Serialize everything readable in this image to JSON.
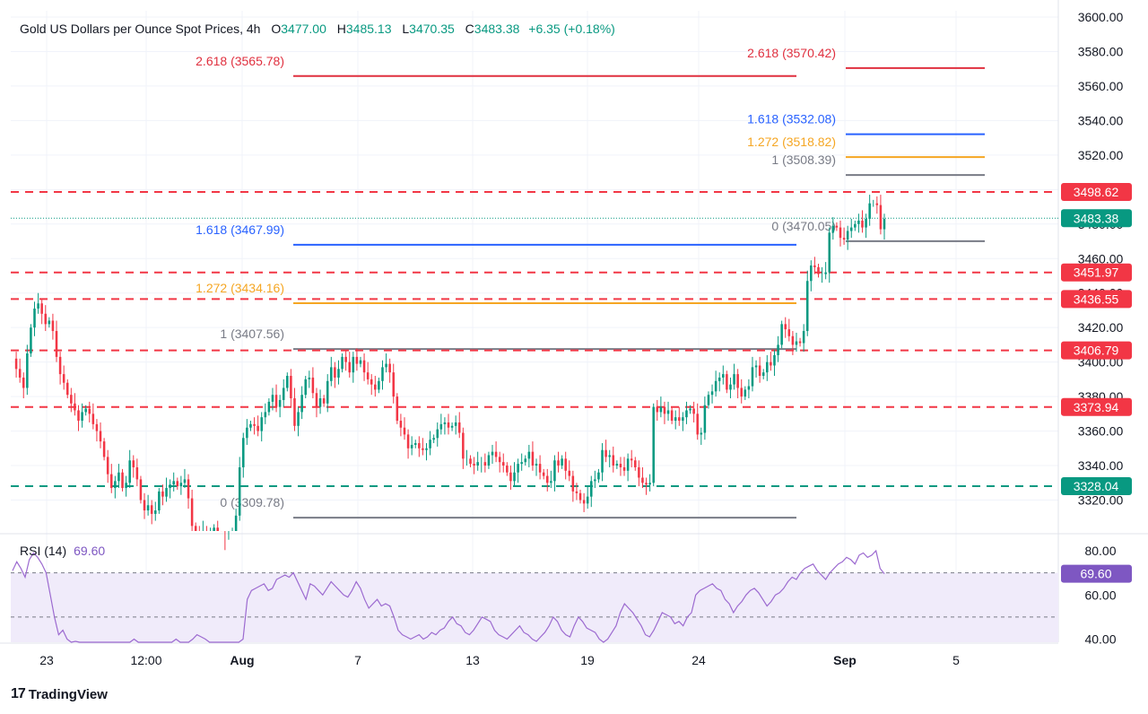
{
  "header": {
    "title": "Gold US Dollars per Ounce Spot Prices, 4h",
    "o_label": "O",
    "o_value": "3477.00",
    "h_label": "H",
    "h_value": "3485.13",
    "l_label": "L",
    "l_value": "3470.35",
    "c_label": "C",
    "c_value": "3483.38",
    "change": "+6.35 (+0.18%)"
  },
  "rsi_header": {
    "label": "RSI (14)",
    "value": "69.60"
  },
  "brand": {
    "logo": "17",
    "name": "TradingView"
  },
  "colors": {
    "up": "#089981",
    "down": "#f23645",
    "red_line": "#e0303f",
    "blue_line": "#2962ff",
    "orange_line": "#f5a623",
    "grey_line": "#787b86",
    "rsi": "#9c6ad0",
    "rsi_band": "#f0ebfa"
  },
  "chart_data": [
    {
      "type": "candlestick",
      "title": "Gold US Dollars per Ounce Spot Prices, 4h",
      "ylim": [
        3300,
        3600
      ],
      "y_ticks": [
        "3600.00",
        "3580.00",
        "3560.00",
        "3540.00",
        "3520.00",
        "3500.00",
        "3480.00",
        "3460.00",
        "3440.00",
        "3420.00",
        "3400.00",
        "3380.00",
        "3360.00",
        "3340.00",
        "3320.00"
      ],
      "x_ticks": [
        "23",
        "12:00",
        "Aug",
        "7",
        "13",
        "19",
        "24",
        "Sep",
        "5"
      ],
      "last_price": {
        "value": 3483.38,
        "label": "3483.38"
      },
      "horizontal_levels": [
        {
          "value": 3498.62,
          "label": "3498.62",
          "color": "#f23645",
          "style": "dashed"
        },
        {
          "value": 3451.97,
          "label": "3451.97",
          "color": "#f23645",
          "style": "dashed"
        },
        {
          "value": 3436.55,
          "label": "3436.55",
          "color": "#f23645",
          "style": "dashed"
        },
        {
          "value": 3406.79,
          "label": "3406.79",
          "color": "#f23645",
          "style": "dashed"
        },
        {
          "value": 3373.94,
          "label": "3373.94",
          "color": "#f23645",
          "style": "dashed"
        },
        {
          "value": 3328.04,
          "label": "3328.04",
          "color": "#089981",
          "style": "dashed"
        }
      ],
      "fib_left": [
        {
          "ratio": "2.618",
          "value": 3565.78,
          "label": "2.618 (3565.78)",
          "color": "#e0303f"
        },
        {
          "ratio": "1.618",
          "value": 3467.99,
          "label": "1.618 (3467.99)",
          "color": "#2962ff"
        },
        {
          "ratio": "1.272",
          "value": 3434.16,
          "label": "1.272 (3434.16)",
          "color": "#f5a623"
        },
        {
          "ratio": "1",
          "value": 3407.56,
          "label": "1 (3407.56)",
          "color": "#787b86"
        },
        {
          "ratio": "0",
          "value": 3309.78,
          "label": "0 (3309.78)",
          "color": "#787b86"
        }
      ],
      "fib_right": [
        {
          "ratio": "2.618",
          "value": 3570.42,
          "label": "2.618 (3570.42)",
          "color": "#e0303f"
        },
        {
          "ratio": "1.618",
          "value": 3532.08,
          "label": "1.618 (3532.08)",
          "color": "#2962ff"
        },
        {
          "ratio": "1.272",
          "value": 3518.82,
          "label": "1.272 (3518.82)",
          "color": "#f5a623"
        },
        {
          "ratio": "1",
          "value": 3508.39,
          "label": "1 (3508.39)",
          "color": "#787b86"
        },
        {
          "ratio": "0",
          "value": 3470.05,
          "label": "0 (3470.05)",
          "color": "#787b86"
        }
      ],
      "close_path": [
        3402,
        3396,
        3391,
        3385,
        3405,
        3420,
        3431,
        3434,
        3428,
        3422,
        3424,
        3418,
        3403,
        3393,
        3388,
        3381,
        3376,
        3372,
        3366,
        3371,
        3373,
        3370,
        3364,
        3360,
        3354,
        3345,
        3335,
        3327,
        3331,
        3336,
        3327,
        3330,
        3343,
        3339,
        3332,
        3320,
        3314,
        3317,
        3312,
        3314,
        3325,
        3322,
        3327,
        3329,
        3331,
        3328,
        3330,
        3332,
        3321,
        3305,
        3301,
        3297,
        3302,
        3296,
        3299,
        3304,
        3296,
        3288,
        3285,
        3292,
        3302,
        3311,
        3339,
        3356,
        3362,
        3364,
        3363,
        3360,
        3368,
        3371,
        3377,
        3381,
        3374,
        3378,
        3385,
        3392,
        3379,
        3363,
        3371,
        3381,
        3390,
        3391,
        3382,
        3374,
        3379,
        3376,
        3389,
        3397,
        3391,
        3396,
        3403,
        3400,
        3394,
        3403,
        3399,
        3401,
        3394,
        3390,
        3387,
        3384,
        3389,
        3397,
        3399,
        3394,
        3380,
        3366,
        3362,
        3358,
        3350,
        3352,
        3353,
        3350,
        3349,
        3350,
        3355,
        3356,
        3361,
        3364,
        3365,
        3362,
        3363,
        3365,
        3359,
        3344,
        3344,
        3341,
        3340,
        3342,
        3342,
        3340,
        3346,
        3348,
        3345,
        3342,
        3340,
        3336,
        3331,
        3336,
        3341,
        3342,
        3344,
        3348,
        3340,
        3341,
        3336,
        3334,
        3330,
        3331,
        3343,
        3340,
        3344,
        3337,
        3334,
        3325,
        3324,
        3320,
        3318,
        3322,
        3331,
        3332,
        3336,
        3349,
        3345,
        3346,
        3340,
        3341,
        3339,
        3337,
        3344,
        3343,
        3339,
        3333,
        3330,
        3329,
        3330,
        3374,
        3371,
        3374,
        3370,
        3372,
        3366,
        3368,
        3366,
        3368,
        3372,
        3373,
        3370,
        3358,
        3359,
        3375,
        3381,
        3383,
        3389,
        3391,
        3393,
        3384,
        3387,
        3393,
        3385,
        3380,
        3384,
        3386,
        3397,
        3398,
        3392,
        3394,
        3400,
        3398,
        3404,
        3410,
        3422,
        3419,
        3415,
        3410,
        3412,
        3411,
        3418,
        3447,
        3456,
        3455,
        3451,
        3451,
        3452,
        3475,
        3479,
        3478,
        3472,
        3471,
        3476,
        3478,
        3480,
        3482,
        3478,
        3483,
        3492,
        3492,
        3491,
        3477,
        3483
      ],
      "candle_x_range": [
        "23",
        "Sep 2"
      ]
    },
    {
      "type": "line",
      "title": "RSI (14)",
      "ylim": [
        40,
        82
      ],
      "y_ticks": [
        "80.00",
        "60.00",
        "40.00"
      ],
      "bands": [
        70,
        30
      ],
      "last_value": {
        "value": 69.6,
        "label": "69.60"
      },
      "values": [
        71,
        75,
        72,
        68,
        76,
        79,
        77,
        74,
        70,
        60,
        50,
        42,
        44,
        40,
        38,
        39,
        36,
        35,
        34,
        36,
        38,
        37,
        35,
        36,
        34,
        33,
        35,
        37,
        36,
        40,
        37,
        36,
        35,
        36,
        32,
        30,
        34,
        36,
        35,
        40,
        38,
        37,
        36,
        40,
        42,
        41,
        40,
        36,
        33,
        32,
        31,
        30,
        28,
        29,
        35,
        40,
        58,
        62,
        63,
        64,
        65,
        62,
        63,
        67,
        68,
        69,
        68,
        70,
        66,
        62,
        58,
        65,
        64,
        62,
        60,
        63,
        66,
        64,
        62,
        60,
        59,
        62,
        66,
        63,
        58,
        54,
        56,
        58,
        55,
        56,
        55,
        50,
        44,
        42,
        41,
        40,
        41,
        42,
        40,
        41,
        43,
        42,
        44,
        45,
        48,
        50,
        47,
        46,
        43,
        42,
        44,
        47,
        50,
        49,
        48,
        44,
        42,
        41,
        40,
        42,
        44,
        46,
        43,
        42,
        40,
        39,
        41,
        43,
        46,
        50,
        48,
        44,
        42,
        41,
        46,
        50,
        48,
        45,
        44,
        43,
        40,
        38,
        40,
        43,
        46,
        52,
        56,
        54,
        52,
        49,
        46,
        42,
        41,
        44,
        48,
        52,
        51,
        50,
        47,
        48,
        46,
        50,
        52,
        60,
        62,
        63,
        64,
        65,
        63,
        62,
        58,
        56,
        52,
        55,
        57,
        60,
        62,
        63,
        61,
        58,
        55,
        57,
        60,
        61,
        63,
        66,
        68,
        67,
        70,
        72,
        73,
        74,
        71,
        69,
        67,
        70,
        72,
        74,
        75,
        77,
        76,
        74,
        78,
        79,
        77,
        78,
        80,
        72,
        69.6
      ]
    }
  ]
}
